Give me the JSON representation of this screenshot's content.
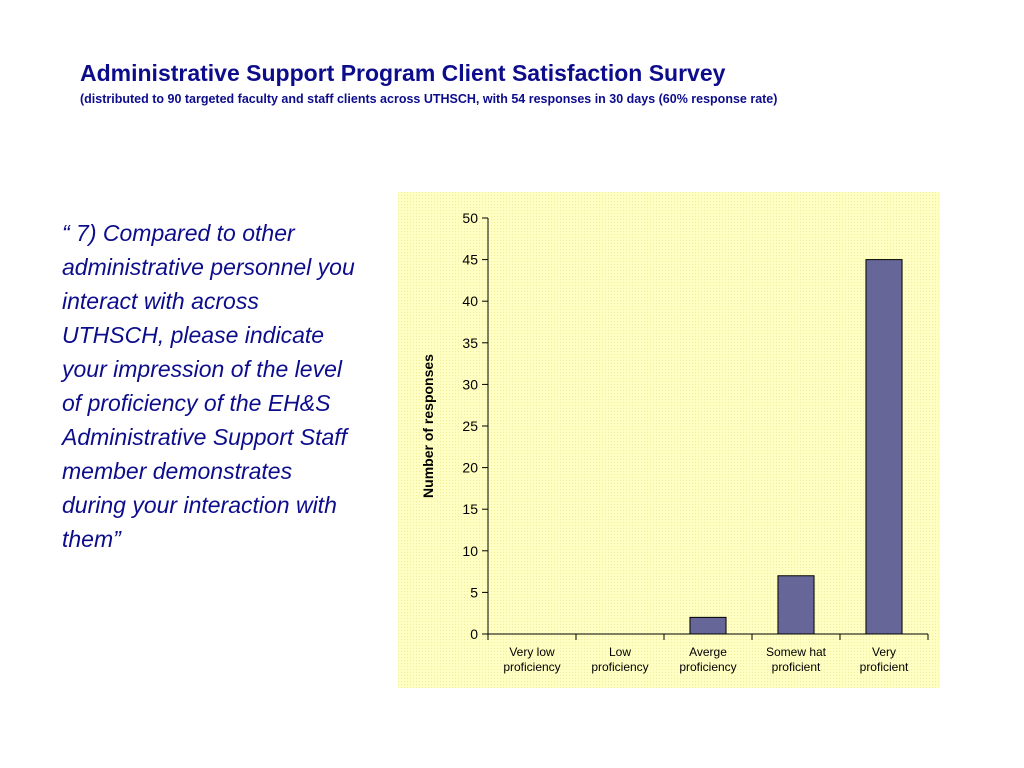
{
  "title": "Administrative Support Program Client Satisfaction Survey",
  "subtitle": "(distributed to 90 targeted faculty and staff clients across UTHSCH, with 54 responses in 30 days (60% response rate)",
  "question": "“ 7) Compared to other administrative personnel you interact with across UTHSCH, please indicate your impression of the level of proficiency of the EH&S Administrative Support Staff member demonstrates during your interaction with them”",
  "colors": {
    "heading": "#0d0d8c",
    "bar": "#666699",
    "plot_background": "#ffffc4"
  },
  "chart_data": {
    "type": "bar",
    "categories": [
      [
        "Very low",
        "proficiency"
      ],
      [
        "Low",
        "proficiency"
      ],
      [
        "Averge",
        "proficiency"
      ],
      [
        "Somew hat",
        "proficient"
      ],
      [
        "Very",
        "proficient"
      ]
    ],
    "values": [
      0,
      0,
      2,
      7,
      45
    ],
    "ylabel": "Number of responses",
    "xlabel": "",
    "ylim": [
      0,
      50
    ],
    "yticks": [
      0,
      5,
      10,
      15,
      20,
      25,
      30,
      35,
      40,
      45,
      50
    ],
    "grid": false,
    "legend": "none"
  }
}
